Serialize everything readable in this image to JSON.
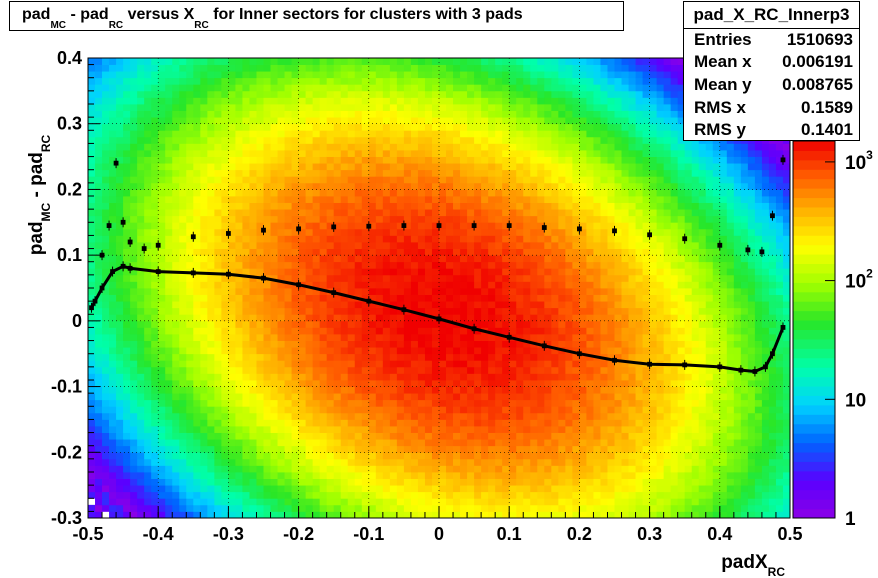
{
  "chart_data": {
    "type": "heatmap",
    "title": {
      "parts": [
        {
          "text": "pad",
          "sub": false
        },
        {
          "text": "MC",
          "sub": true
        },
        {
          "text": " - pad",
          "sub": false
        },
        {
          "text": "RC",
          "sub": true
        },
        {
          "text": " versus X",
          "sub": false
        },
        {
          "text": "RC",
          "sub": true
        },
        {
          "text": " for Inner sectors for clusters with 3 pads",
          "sub": false
        }
      ]
    },
    "xlabel": {
      "main": "padX",
      "sub": "RC"
    },
    "ylabel": {
      "parts": [
        {
          "text": "pad",
          "sub": false
        },
        {
          "text": "MC",
          "sub": true
        },
        {
          "text": " - pad",
          "sub": false
        },
        {
          "text": "RC",
          "sub": true
        }
      ]
    },
    "xlim": [
      -0.5,
      0.5
    ],
    "ylim": [
      -0.3,
      0.4
    ],
    "x_ticks": [
      "-0.5",
      "-0.4",
      "-0.3",
      "-0.2",
      "-0.1",
      "0",
      "0.1",
      "0.2",
      "0.3",
      "0.4",
      "0.5"
    ],
    "y_ticks": [
      "-0.3",
      "-0.2",
      "-0.1",
      "0",
      "0.1",
      "0.2",
      "0.3",
      "0.4"
    ],
    "grid": true,
    "colorbar": {
      "scale": "log",
      "range": [
        1,
        1500
      ],
      "labels": [
        {
          "value": 1,
          "base": "1",
          "exp": ""
        },
        {
          "value": 10,
          "base": "10",
          "exp": ""
        },
        {
          "value": 100,
          "base": "10",
          "exp": "2"
        },
        {
          "value": 1000,
          "base": "10",
          "exp": "3"
        }
      ]
    },
    "density_model": {
      "peak_count": 1500,
      "mean_x": 0.006,
      "mean_y": 0.0088,
      "rms_x": 0.1589,
      "rms_y": 0.1401,
      "tilt": -0.25
    },
    "profile_mean": {
      "x": [
        -0.495,
        -0.48,
        -0.465,
        -0.45,
        -0.44,
        -0.4,
        -0.35,
        -0.3,
        -0.25,
        -0.2,
        -0.15,
        -0.1,
        -0.05,
        0.0,
        0.05,
        0.1,
        0.15,
        0.2,
        0.25,
        0.3,
        0.35,
        0.4,
        0.43,
        0.45,
        0.465,
        0.475,
        0.49
      ],
      "y": [
        0.02,
        0.05,
        0.075,
        0.083,
        0.08,
        0.075,
        0.073,
        0.071,
        0.065,
        0.055,
        0.043,
        0.03,
        0.017,
        0.003,
        -0.012,
        -0.025,
        -0.038,
        -0.05,
        -0.06,
        -0.066,
        -0.067,
        -0.07,
        -0.075,
        -0.077,
        -0.07,
        -0.05,
        -0.01
      ]
    },
    "profile_rms": {
      "x": [
        -0.49,
        -0.48,
        -0.47,
        -0.46,
        -0.45,
        -0.44,
        -0.42,
        -0.4,
        -0.35,
        -0.3,
        -0.25,
        -0.2,
        -0.15,
        -0.1,
        -0.05,
        0.0,
        0.05,
        0.1,
        0.15,
        0.2,
        0.25,
        0.3,
        0.35,
        0.4,
        0.44,
        0.46,
        0.475,
        0.49
      ],
      "y": [
        0.03,
        0.1,
        0.145,
        0.24,
        0.15,
        0.12,
        0.11,
        0.115,
        0.128,
        0.133,
        0.138,
        0.14,
        0.143,
        0.144,
        0.145,
        0.145,
        0.145,
        0.145,
        0.142,
        0.14,
        0.137,
        0.131,
        0.125,
        0.115,
        0.108,
        0.105,
        0.16,
        0.245
      ]
    }
  },
  "stats": {
    "name": "pad_X_RC_Innerp3",
    "rows": [
      {
        "label": "Entries",
        "value": "1510693"
      },
      {
        "label": "Mean x",
        "value": "0.006191"
      },
      {
        "label": "Mean y",
        "value": "0.008765"
      },
      {
        "label": "RMS x",
        "value": "0.1589"
      },
      {
        "label": "RMS y",
        "value": "0.1401"
      }
    ]
  }
}
